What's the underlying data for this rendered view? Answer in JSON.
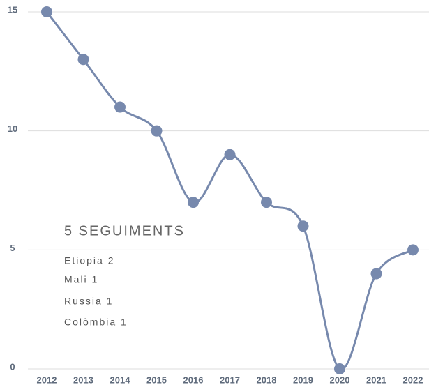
{
  "chart_data": {
    "type": "line",
    "categories": [
      "2012",
      "2013",
      "2014",
      "2015",
      "2016",
      "2017",
      "2018",
      "2019",
      "2020",
      "2021",
      "2022"
    ],
    "series": [
      {
        "color": "#7789ad",
        "values": [
          15,
          13,
          11,
          10,
          7,
          9,
          7,
          6,
          0,
          4,
          5
        ]
      }
    ],
    "ylim": [
      0,
      15
    ],
    "yticks": [
      0,
      5,
      10,
      15
    ],
    "grid": true,
    "annotations": [
      "5 SEGUIMENTS",
      "Etiopia 2",
      "Mali 1",
      "Russia 1",
      "Colòmbia 1"
    ]
  }
}
